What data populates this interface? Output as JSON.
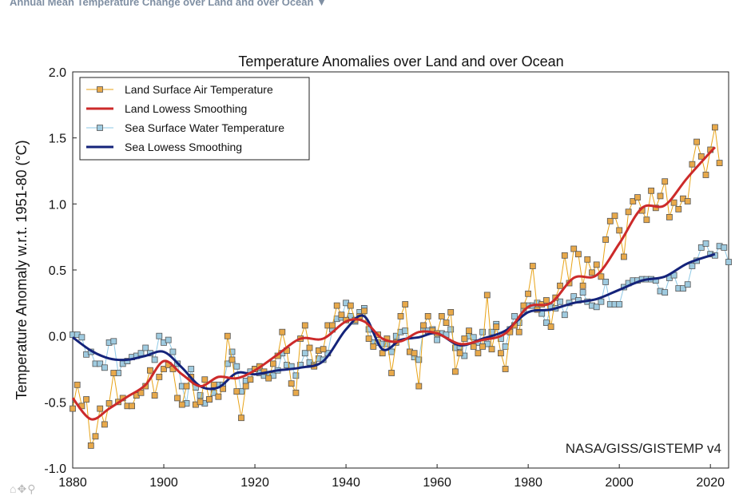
{
  "header": {
    "dropdown_label": "Annual Mean Temperature Change over Land and over Ocean",
    "dropdown_arrow": "▼"
  },
  "toolbar_icons": [
    "home-icon",
    "move-icon",
    "zoom-icon"
  ],
  "chart_data": {
    "type": "line",
    "title": "Temperature Anomalies over Land and over Ocean",
    "xlabel": "",
    "ylabel": "Temperature Anomaly w.r.t. 1951-80 (°C)",
    "xlim": [
      1880,
      2024
    ],
    "ylim": [
      -1.0,
      2.0
    ],
    "xticks": [
      1880,
      1900,
      1920,
      1940,
      1960,
      1980,
      2000,
      2020
    ],
    "yticks": [
      -1.0,
      -0.5,
      0.0,
      0.5,
      1.0,
      1.5,
      2.0
    ],
    "ytick_labels": [
      "-1.0",
      "-0.5",
      "0.0",
      "0.5",
      "1.0",
      "1.5",
      "2.0"
    ],
    "credit": "NASA/GISS/GISTEMP v4",
    "legend_position": "top-left",
    "legend": [
      {
        "label": "Land Surface Air Temperature",
        "style": "marker-line",
        "color": "#e8a317",
        "marker_fill": "#e8a94a"
      },
      {
        "label": "Land Lowess Smoothing",
        "style": "line",
        "color": "#cc2a2a"
      },
      {
        "label": "Sea Surface Water Temperature",
        "style": "marker-line",
        "color": "#8ec9e6",
        "marker_fill": "#9fcbe0"
      },
      {
        "label": "Sea Lowess Smoothing",
        "style": "line",
        "color": "#14237a"
      }
    ],
    "series": [
      {
        "name": "Land Surface Air Temperature",
        "x_start": 1880,
        "values": [
          -0.55,
          -0.37,
          -0.53,
          -0.48,
          -0.83,
          -0.76,
          -0.55,
          -0.67,
          -0.51,
          -0.28,
          -0.5,
          -0.47,
          -0.53,
          -0.53,
          -0.45,
          -0.43,
          -0.38,
          -0.26,
          -0.45,
          -0.31,
          -0.25,
          -0.22,
          -0.25,
          -0.47,
          -0.52,
          -0.38,
          -0.31,
          -0.52,
          -0.5,
          -0.33,
          -0.48,
          -0.37,
          -0.46,
          -0.4,
          0.0,
          -0.18,
          -0.42,
          -0.62,
          -0.38,
          -0.33,
          -0.25,
          -0.23,
          -0.27,
          -0.32,
          -0.21,
          -0.15,
          0.03,
          -0.11,
          -0.36,
          -0.43,
          -0.02,
          0.08,
          -0.09,
          -0.23,
          -0.11,
          -0.1,
          0.08,
          0.08,
          0.23,
          0.16,
          0.12,
          0.23,
          0.12,
          0.15,
          0.19,
          -0.02,
          -0.08,
          0.01,
          -0.13,
          -0.02,
          -0.28,
          -0.05,
          0.15,
          0.24,
          -0.12,
          -0.13,
          -0.38,
          0.08,
          0.15,
          0.04,
          0.02,
          0.15,
          0.1,
          0.18,
          -0.27,
          -0.13,
          -0.02,
          0.04,
          -0.08,
          -0.13,
          -0.08,
          0.31,
          -0.1,
          0.07,
          -0.13,
          -0.25,
          0.03,
          0.08,
          0.03,
          0.23,
          0.32,
          0.53,
          0.2,
          0.24,
          0.27,
          0.07,
          0.29,
          0.38,
          0.61,
          0.4,
          0.66,
          0.62,
          0.38,
          0.58,
          0.48,
          0.54,
          0.45,
          0.73,
          0.87,
          0.91,
          0.8,
          0.6,
          0.94,
          1.02,
          1.05,
          0.95,
          0.88,
          1.1,
          0.97,
          1.06,
          1.17,
          0.9,
          1.01,
          0.96,
          1.04,
          1.02,
          1.3,
          1.47,
          1.36,
          1.22,
          1.41,
          1.58,
          1.31
        ]
      },
      {
        "name": "Land Lowess Smoothing",
        "x": [
          1880,
          1884,
          1888,
          1892,
          1896,
          1900,
          1904,
          1908,
          1912,
          1916,
          1920,
          1925,
          1930,
          1935,
          1940,
          1944,
          1948,
          1952,
          1956,
          1960,
          1965,
          1970,
          1975,
          1980,
          1985,
          1990,
          1995,
          2000,
          2005,
          2010,
          2015,
          2021
        ],
        "values": [
          -0.47,
          -0.63,
          -0.55,
          -0.46,
          -0.37,
          -0.19,
          -0.29,
          -0.38,
          -0.31,
          -0.32,
          -0.26,
          -0.14,
          -0.02,
          -0.02,
          0.11,
          0.11,
          -0.02,
          -0.04,
          0.03,
          0.02,
          -0.06,
          -0.03,
          0.02,
          0.22,
          0.25,
          0.44,
          0.46,
          0.7,
          0.97,
          0.99,
          1.2,
          1.43
        ]
      },
      {
        "name": "Sea Surface Water Temperature",
        "x_start": 1880,
        "values": [
          0.01,
          0.01,
          -0.01,
          -0.14,
          -0.12,
          -0.21,
          -0.21,
          -0.24,
          -0.05,
          -0.04,
          -0.28,
          -0.21,
          -0.19,
          -0.16,
          -0.15,
          -0.13,
          -0.09,
          -0.13,
          -0.18,
          0.0,
          -0.05,
          -0.03,
          -0.12,
          -0.21,
          -0.38,
          -0.51,
          -0.25,
          -0.39,
          -0.45,
          -0.51,
          -0.48,
          -0.43,
          -0.37,
          -0.37,
          -0.21,
          -0.12,
          -0.23,
          -0.42,
          -0.34,
          -0.27,
          -0.25,
          -0.28,
          -0.3,
          -0.29,
          -0.3,
          -0.26,
          -0.13,
          -0.22,
          -0.23,
          -0.3,
          -0.22,
          -0.13,
          -0.2,
          -0.22,
          -0.17,
          -0.18,
          -0.13,
          0.05,
          0.13,
          0.14,
          0.25,
          0.15,
          0.11,
          0.18,
          0.21,
          0.05,
          -0.05,
          -0.05,
          -0.06,
          -0.06,
          -0.12,
          0.0,
          0.03,
          0.04,
          -0.12,
          -0.16,
          -0.18,
          0.05,
          0.04,
          0.05,
          -0.03,
          0.02,
          0.01,
          0.05,
          -0.09,
          -0.08,
          -0.15,
          0.0,
          -0.01,
          -0.05,
          0.03,
          -0.06,
          0.03,
          0.09,
          -0.02,
          -0.08,
          0.05,
          0.15,
          0.1,
          0.2,
          0.23,
          0.23,
          0.25,
          0.17,
          0.1,
          0.22,
          0.21,
          0.26,
          0.16,
          0.25,
          0.3,
          0.27,
          0.33,
          0.26,
          0.23,
          0.22,
          0.26,
          0.41,
          0.24,
          0.24,
          0.24,
          0.37,
          0.4,
          0.42,
          0.42,
          0.43,
          0.43,
          0.43,
          0.42,
          0.34,
          0.33,
          0.44,
          0.46,
          0.36,
          0.36,
          0.39,
          0.53,
          0.57,
          0.67,
          0.7,
          0.62,
          0.61,
          0.68,
          0.67,
          0.56
        ]
      },
      {
        "name": "Sea Lowess Smoothing",
        "x": [
          1880,
          1884,
          1888,
          1892,
          1896,
          1900,
          1904,
          1908,
          1912,
          1916,
          1920,
          1925,
          1930,
          1935,
          1940,
          1944,
          1948,
          1952,
          1956,
          1960,
          1965,
          1970,
          1975,
          1980,
          1985,
          1990,
          1995,
          2000,
          2005,
          2010,
          2015,
          2021
        ],
        "values": [
          -0.01,
          -0.11,
          -0.17,
          -0.18,
          -0.15,
          -0.12,
          -0.24,
          -0.38,
          -0.39,
          -0.28,
          -0.29,
          -0.26,
          -0.24,
          -0.19,
          0.05,
          0.15,
          -0.1,
          -0.03,
          -0.01,
          0.02,
          -0.07,
          -0.02,
          0.04,
          0.18,
          0.2,
          0.25,
          0.28,
          0.35,
          0.42,
          0.45,
          0.55,
          0.62
        ]
      }
    ]
  }
}
